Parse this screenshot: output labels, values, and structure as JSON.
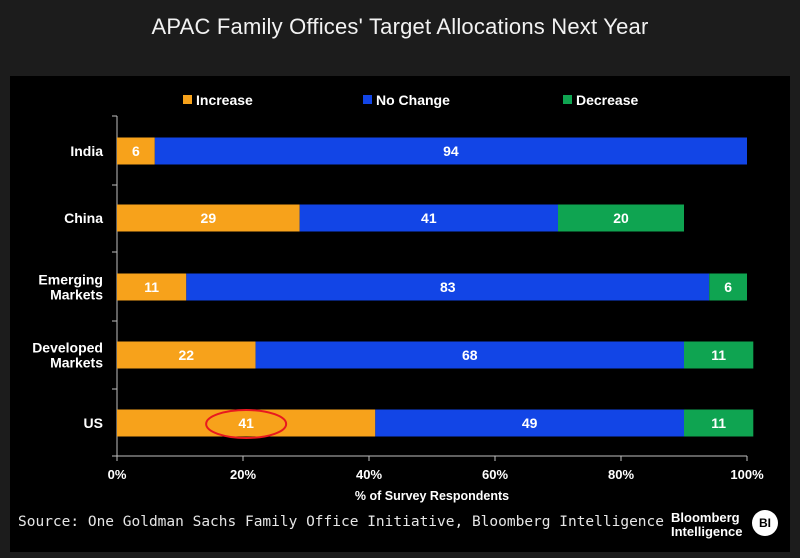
{
  "title": "APAC Family Offices' Target Allocations Next Year",
  "source": "Source: One Goldman Sachs Family Office Initiative, Bloomberg Intelligence",
  "brand": {
    "line1": "Bloomberg",
    "line2": "Intelligence",
    "badge": "BI"
  },
  "colors": {
    "increase": "#f7a21b",
    "no_change": "#1245e6",
    "decrease": "#0fa451",
    "highlight": "#e8191f"
  },
  "chart_data": {
    "type": "bar",
    "orientation": "horizontal",
    "stacked": true,
    "categories": [
      "India",
      "China",
      "Emerging Markets",
      "Developed Markets",
      "US"
    ],
    "category_labels": [
      [
        "India"
      ],
      [
        "China"
      ],
      [
        "Emerging",
        "Markets"
      ],
      [
        "Developed",
        "Markets"
      ],
      [
        "US"
      ]
    ],
    "series": [
      {
        "name": "Increase",
        "key": "increase",
        "values": [
          6,
          29,
          11,
          22,
          41
        ]
      },
      {
        "name": "No Change",
        "key": "no_change",
        "values": [
          94,
          41,
          83,
          68,
          49
        ]
      },
      {
        "name": "Decrease",
        "key": "decrease",
        "values": [
          0,
          20,
          6,
          11,
          11
        ]
      }
    ],
    "xlabel": "% of Survey Respondents",
    "xlim": [
      0,
      100
    ],
    "xticks": [
      0,
      20,
      40,
      60,
      80,
      100
    ],
    "xtick_labels": [
      "0%",
      "20%",
      "40%",
      "60%",
      "80%",
      "100%"
    ],
    "legend_position": "top",
    "highlight": {
      "category": "US",
      "series": "Increase",
      "value": 41
    }
  }
}
